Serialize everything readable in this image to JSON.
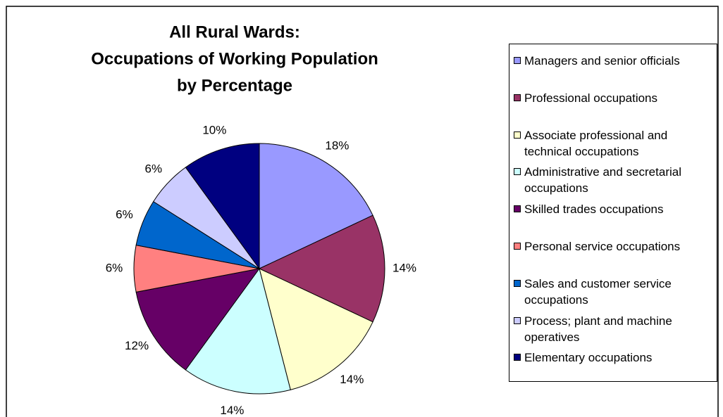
{
  "chart_data": {
    "type": "pie",
    "title": [
      "All Rural Wards:",
      "Occupations of Working Population",
      "by Percentage"
    ],
    "categories": [
      "Managers and senior officials",
      "Professional occupations",
      "Associate professional and technical occupations",
      "Administrative and secretarial occupations",
      "Skilled trades occupations",
      "Personal service occupations",
      "Sales and customer service occupations",
      "Process; plant and machine operatives",
      "Elementary occupations"
    ],
    "values": [
      18,
      14,
      14,
      14,
      12,
      6,
      6,
      6,
      10
    ],
    "value_labels": [
      "18%",
      "14%",
      "14%",
      "14%",
      "12%",
      "6%",
      "6%",
      "6%",
      "10%"
    ],
    "colors": [
      "#9999ff",
      "#993366",
      "#ffffcc",
      "#ccffff",
      "#660066",
      "#ff8080",
      "#0066cc",
      "#ccccff",
      "#000080"
    ],
    "legend": "right"
  }
}
